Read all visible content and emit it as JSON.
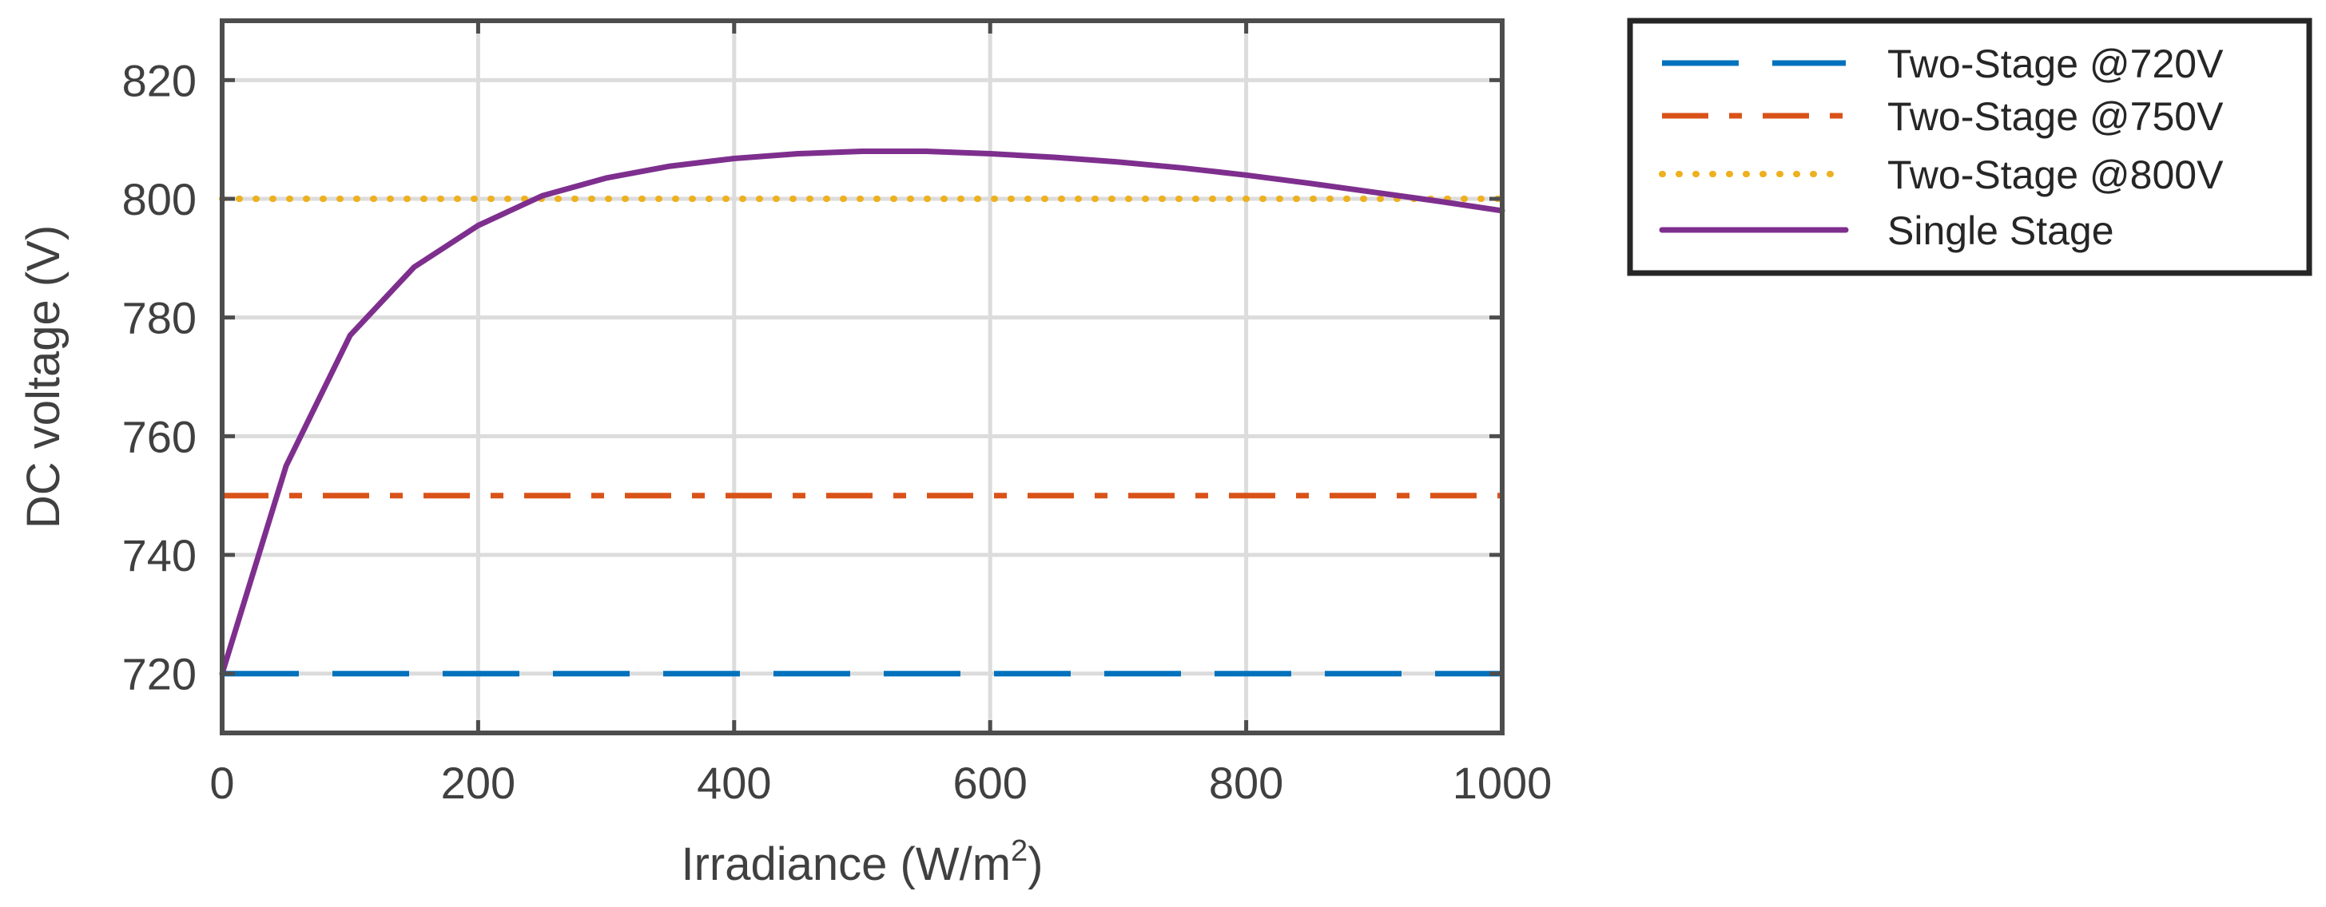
{
  "chart_data": {
    "type": "line",
    "title": "",
    "xlabel": "Irradiance (W/m",
    "xlabel_sup": "2",
    "xlabel_end": ")",
    "ylabel": "DC voltage (V)",
    "xlim": [
      0,
      1000
    ],
    "ylim": [
      710,
      830
    ],
    "x_ticks": [
      0,
      200,
      400,
      600,
      800,
      1000
    ],
    "y_ticks": [
      720,
      740,
      760,
      780,
      800,
      820
    ],
    "grid": true,
    "legend_position": "outside-top-right",
    "series": [
      {
        "name": "Two-Stage @720V",
        "color": "#0072BD",
        "style": "dashed",
        "x": [
          0,
          1000
        ],
        "values": [
          720,
          720
        ]
      },
      {
        "name": "Two-Stage @750V",
        "color": "#D95319",
        "style": "dashdot",
        "x": [
          0,
          1000
        ],
        "values": [
          750,
          750
        ]
      },
      {
        "name": "Two-Stage @800V",
        "color": "#EDB120",
        "style": "dotted",
        "x": [
          0,
          1000
        ],
        "values": [
          800,
          800
        ]
      },
      {
        "name": "Single Stage",
        "color": "#7E2F8E",
        "style": "solid",
        "x": [
          0,
          50,
          100,
          150,
          200,
          250,
          300,
          350,
          400,
          450,
          500,
          550,
          600,
          650,
          700,
          750,
          800,
          850,
          900,
          950,
          1000
        ],
        "values": [
          720,
          755,
          777,
          788.5,
          795.5,
          800.5,
          803.5,
          805.5,
          806.8,
          807.6,
          808,
          808,
          807.6,
          807,
          806.2,
          805.2,
          804,
          802.6,
          801.1,
          799.6,
          798
        ]
      }
    ]
  }
}
